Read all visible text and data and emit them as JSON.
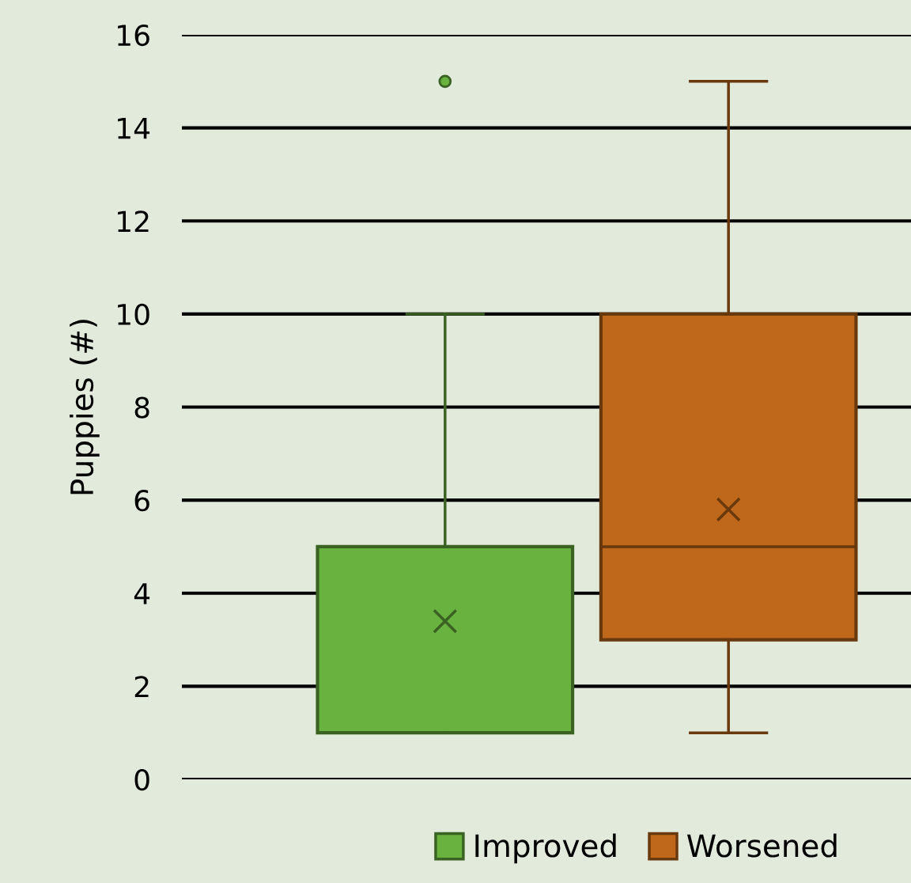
{
  "chart_data": {
    "type": "box",
    "ylabel": "Puppies (#)",
    "categories": [
      null
    ],
    "series": [
      {
        "name": "Improved",
        "color": "#6ab23f",
        "boxes": [
          {
            "low": 1,
            "q1": 1,
            "median": 1,
            "q3": 5,
            "high": 10,
            "mean": 3.4,
            "outliers": [
              15
            ]
          }
        ]
      },
      {
        "name": "Worsened",
        "color": "#bf671a",
        "boxes": [
          {
            "low": 1,
            "q1": 3,
            "median": 5,
            "q3": 10,
            "high": 15,
            "mean": 5.8
          }
        ]
      }
    ],
    "ylim": [
      0,
      16
    ],
    "yticks": [
      0,
      2,
      4,
      6,
      8,
      10,
      12,
      14,
      16
    ],
    "grid": "y",
    "legend": "bottom",
    "tick_labels": "y"
  }
}
